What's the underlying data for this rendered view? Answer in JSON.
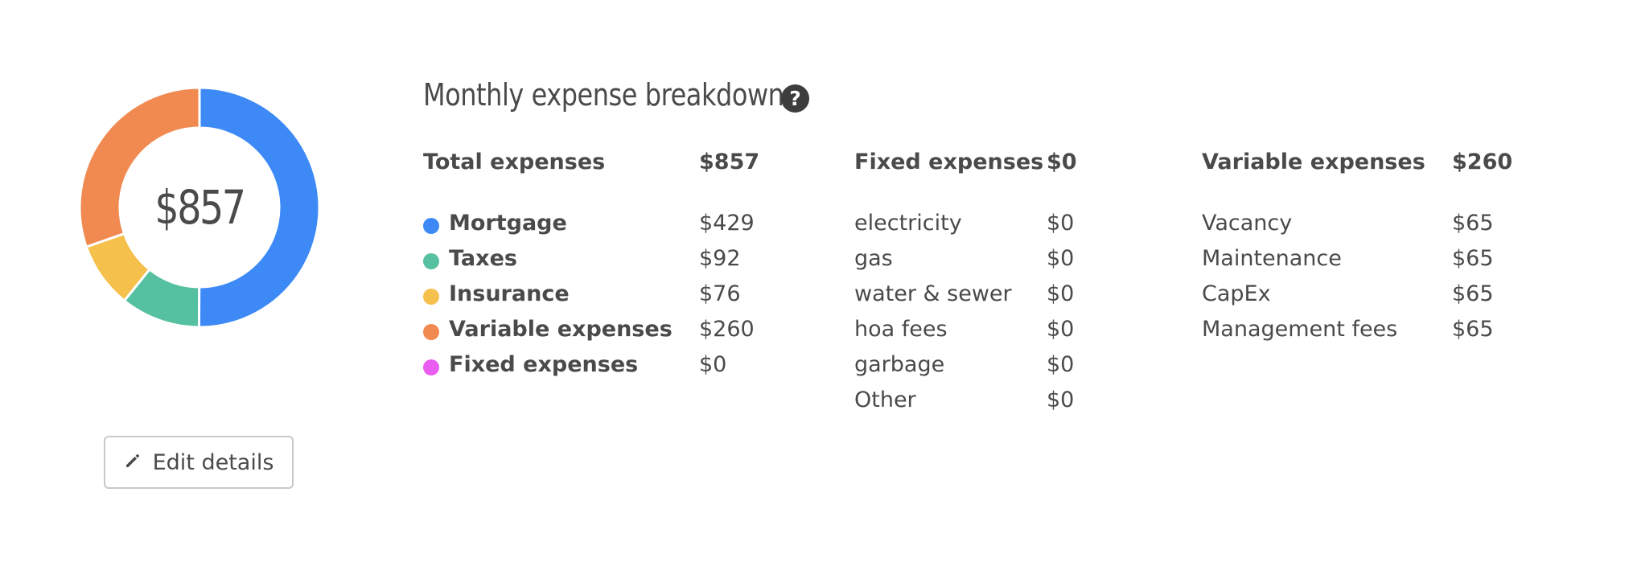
{
  "chart_data": {
    "type": "pie",
    "center_label": "$857",
    "slices": [
      {
        "label": "Mortgage",
        "value": 429,
        "color": "#3d8af7"
      },
      {
        "label": "Taxes",
        "value": 92,
        "color": "#55c1a0"
      },
      {
        "label": "Insurance",
        "value": 76,
        "color": "#f6c04c"
      },
      {
        "label": "Variable expenses",
        "value": 260,
        "color": "#f08a50"
      },
      {
        "label": "Fixed expenses",
        "value": 0,
        "color": "#e95ef0"
      }
    ]
  },
  "title": "Monthly expense breakdown",
  "help_icon": "question-circle-icon",
  "summary": {
    "label": "Total expenses",
    "value": "$857",
    "items": [
      {
        "label": "Mortgage",
        "value": "$429",
        "color": "#3d8af7"
      },
      {
        "label": "Taxes",
        "value": "$92",
        "color": "#55c1a0"
      },
      {
        "label": "Insurance",
        "value": "$76",
        "color": "#f6c04c"
      },
      {
        "label": "Variable expenses",
        "value": "$260",
        "color": "#f08a50"
      },
      {
        "label": "Fixed expenses",
        "value": "$0",
        "color": "#e95ef0"
      }
    ]
  },
  "fixed": {
    "label": "Fixed expenses",
    "value": "$0",
    "items": [
      {
        "label": "electricity",
        "value": "$0"
      },
      {
        "label": "gas",
        "value": "$0"
      },
      {
        "label": "water & sewer",
        "value": "$0"
      },
      {
        "label": "hoa fees",
        "value": "$0"
      },
      {
        "label": "garbage",
        "value": "$0"
      },
      {
        "label": "Other",
        "value": "$0"
      }
    ]
  },
  "variable": {
    "label": "Variable expenses",
    "value": "$260",
    "items": [
      {
        "label": "Vacancy",
        "value": "$65"
      },
      {
        "label": "Maintenance",
        "value": "$65"
      },
      {
        "label": "CapEx",
        "value": "$65"
      },
      {
        "label": "Management fees",
        "value": "$65"
      }
    ]
  },
  "edit_button": {
    "label": "Edit details",
    "icon": "pencil-icon"
  }
}
